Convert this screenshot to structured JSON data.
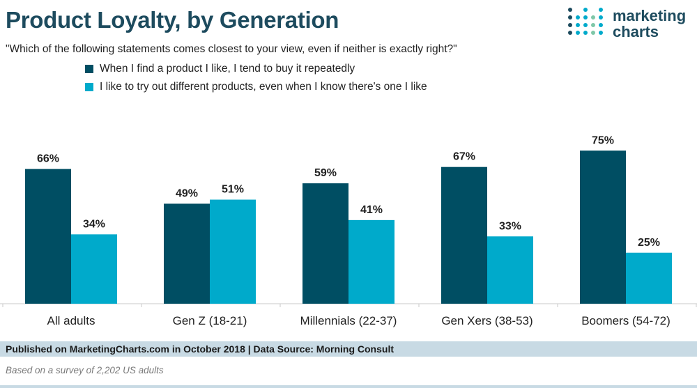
{
  "header": {
    "title": "Product Loyalty, by Generation",
    "subtitle": "\"Which of the following statements comes closest to your view, even if neither is exactly right?\""
  },
  "logo": {
    "line1": "marketing",
    "line2": "charts"
  },
  "colors": {
    "series1": "#004e63",
    "series2": "#00aacb",
    "title": "#1d4b5e",
    "footer_bg": "#c8dae4"
  },
  "chart_data": {
    "type": "bar",
    "title": "Product Loyalty, by Generation",
    "categories": [
      "All adults",
      "Gen Z (18-21)",
      "Millennials (22-37)",
      "Gen Xers (38-53)",
      "Boomers (54-72)"
    ],
    "series": [
      {
        "name": "When I find a product I like, I tend to buy it repeatedly",
        "values": [
          66,
          49,
          59,
          67,
          75
        ],
        "labels": [
          "66%",
          "49%",
          "59%",
          "67%",
          "75%"
        ]
      },
      {
        "name": "I like to try out different products, even when I know there's one I like",
        "values": [
          34,
          51,
          41,
          33,
          25
        ],
        "labels": [
          "34%",
          "51%",
          "41%",
          "33%",
          "25%"
        ]
      }
    ],
    "ylim": [
      0,
      100
    ],
    "xlabel": "",
    "ylabel": "",
    "grid": false,
    "legend": "top-left"
  },
  "footer": {
    "published": "Published on MarketingCharts.com in October 2018 | Data Source: Morning Consult",
    "note": "Based on a survey of 2,202 US adults"
  }
}
